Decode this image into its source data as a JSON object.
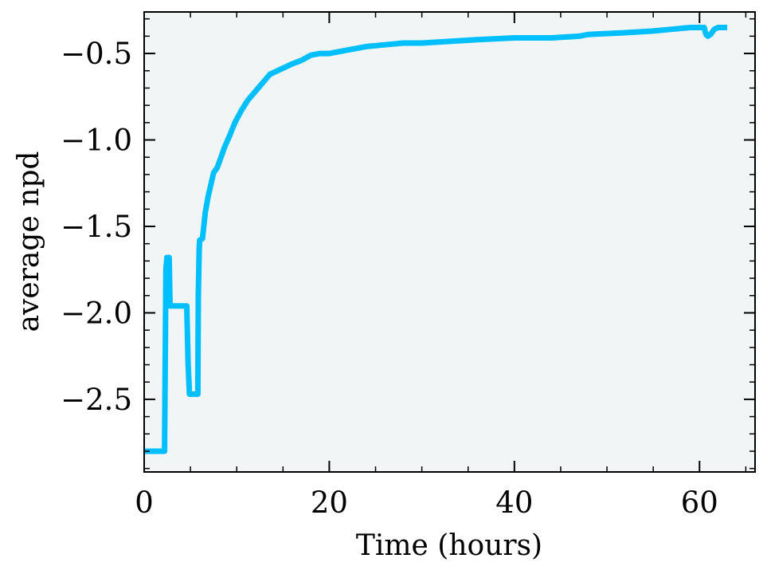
{
  "chart_data": {
    "type": "line",
    "title": "",
    "xlabel": "Time (hours)",
    "ylabel": "average npd",
    "xlim": [
      0,
      66
    ],
    "ylim": [
      -2.92,
      -0.26
    ],
    "xticks": [
      0,
      20,
      40,
      60
    ],
    "xtick_labels": [
      "0",
      "20",
      "40",
      "60"
    ],
    "yticks": [
      -0.5,
      -1.0,
      -1.5,
      -2.0,
      -2.5
    ],
    "ytick_labels": [
      "−0.5",
      "−1.0",
      "−1.5",
      "−2.0",
      "−2.5"
    ],
    "grid": false,
    "legend": "none",
    "background_color": "#f1f5f6",
    "series": [
      {
        "color": "#00bfff",
        "x": [
          0.0,
          2.2,
          2.35,
          2.45,
          2.5,
          2.7,
          2.8,
          2.85,
          3.0,
          4.6,
          4.75,
          4.9,
          5.0,
          5.8,
          5.85,
          5.95,
          6.0,
          6.3,
          6.6,
          6.9,
          7.2,
          7.5,
          7.9,
          8.3,
          8.7,
          9.2,
          9.8,
          10.5,
          11.2,
          12.0,
          12.8,
          13.6,
          14.4,
          15.2,
          16.0,
          17.0,
          18.0,
          19.0,
          20.0,
          22.0,
          24.0,
          26.0,
          28.0,
          30.0,
          33.0,
          36.0,
          40.0,
          44.0,
          47.0,
          48.0,
          52.0,
          55.0,
          57.0,
          59.0,
          60.5,
          60.7,
          60.9,
          61.2,
          61.6,
          62.0,
          63.0
        ],
        "y": [
          -2.8,
          -2.8,
          -1.75,
          -1.68,
          -1.68,
          -1.68,
          -1.96,
          -1.96,
          -1.96,
          -1.96,
          -2.3,
          -2.47,
          -2.47,
          -2.47,
          -1.9,
          -1.63,
          -1.58,
          -1.57,
          -1.42,
          -1.33,
          -1.26,
          -1.19,
          -1.16,
          -1.1,
          -1.04,
          -0.98,
          -0.9,
          -0.83,
          -0.77,
          -0.72,
          -0.67,
          -0.62,
          -0.6,
          -0.58,
          -0.56,
          -0.54,
          -0.51,
          -0.5,
          -0.5,
          -0.48,
          -0.46,
          -0.45,
          -0.44,
          -0.44,
          -0.43,
          -0.42,
          -0.41,
          -0.41,
          -0.4,
          -0.39,
          -0.38,
          -0.37,
          -0.36,
          -0.35,
          -0.35,
          -0.39,
          -0.4,
          -0.39,
          -0.36,
          -0.35,
          -0.35
        ]
      }
    ]
  }
}
